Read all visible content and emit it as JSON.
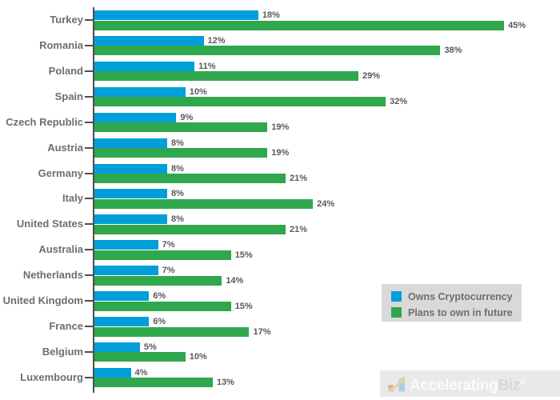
{
  "chart_data": {
    "type": "bar",
    "orientation": "horizontal",
    "title": "",
    "xlabel": "",
    "ylabel": "",
    "xlim": [
      0,
      50
    ],
    "grid": false,
    "value_suffix": "%",
    "legend_position": "bottom-right",
    "categories": [
      "Turkey",
      "Romania",
      "Poland",
      "Spain",
      "Czech Republic",
      "Austria",
      "Germany",
      "Italy",
      "United States",
      "Australia",
      "Netherlands",
      "United Kingdom",
      "France",
      "Belgium",
      "Luxembourg"
    ],
    "series": [
      {
        "name": "Owns Cryptocurrency",
        "color": "#009FDA",
        "values": [
          18,
          12,
          11,
          10,
          9,
          8,
          8,
          8,
          8,
          7,
          7,
          6,
          6,
          5,
          4
        ]
      },
      {
        "name": "Plans to own in future",
        "color": "#2FA74D",
        "values": [
          45,
          38,
          29,
          32,
          19,
          19,
          21,
          24,
          21,
          15,
          14,
          15,
          17,
          10,
          13
        ]
      }
    ]
  },
  "branding": {
    "logo_text_primary": "Accelerating",
    "logo_text_secondary": "Biz",
    "registered_mark": "®",
    "icon": "bar-chart-arrow-icon"
  },
  "colors": {
    "axis": "#4d4d4f",
    "country_label_text": "#6d6e71",
    "value_label_text": "#58595b",
    "legend_bg": "#d9d9d9",
    "logo_bg": "#e8e9ea"
  }
}
